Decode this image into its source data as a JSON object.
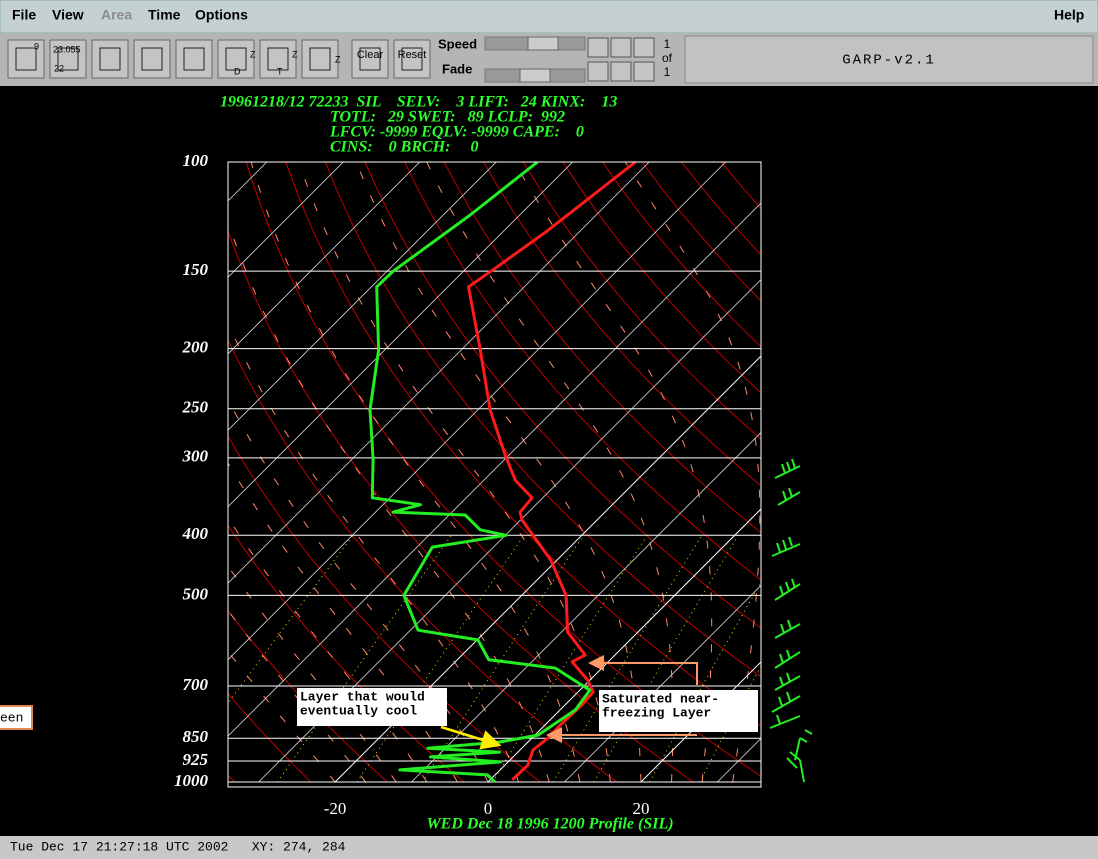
{
  "menu": {
    "items": [
      "File",
      "View",
      "Area",
      "Time",
      "Options"
    ],
    "help": "Help"
  },
  "toolbar": {
    "icon_texts": [
      "9",
      "23.055",
      "22",
      "Z",
      "D",
      "Z",
      "T",
      "Z"
    ],
    "clear": "Clear",
    "reset": "Reset",
    "speed": "Speed",
    "fade": "Fade",
    "frame_top": [
      "1",
      "of",
      "1"
    ],
    "app_title": "GARP-v2.1"
  },
  "side_tag": "een",
  "status": "Tue Dec 17 21:27:18 UTC 2002   XY: 274, 284",
  "chart_data": {
    "type": "skewt",
    "header": [
      "19961218/12 72233  SIL    SELV:    3 LIFT:   24 KINX:    13",
      "TOTL:   29 SWET:   89 LCLP:  992",
      "LFCV: -9999 EQLV: -9999 CAPE:    0",
      "CINS:    0 BRCH:     0"
    ],
    "title": "WED Dec 18 1996 1200 Profile (SIL)",
    "ylim": [
      1000,
      100
    ],
    "log_y": true,
    "yticks": [
      100,
      150,
      200,
      250,
      300,
      400,
      500,
      700,
      850,
      925,
      1000
    ],
    "xlim": [
      -34,
      35.7
    ],
    "xticks": [
      -20,
      0,
      20
    ],
    "series": [
      {
        "color": "#ff1a1a",
        "x": [
          2.9,
          3.0,
          1.7,
          2.1,
          2.0,
          2.2,
          2.0,
          -0.3,
          -4.7,
          -3.9,
          -9.2,
          -14.2,
          -20.9,
          -29.8,
          -31.1,
          -31.4,
          -35.9,
          -40.5,
          -48.4,
          -57.5,
          -67.3,
          -66.4,
          -64.3,
          -61.8
        ],
        "values": [
          992,
          939,
          888,
          849,
          809,
          751,
          716,
          685,
          640,
          624,
          573,
          500,
          438,
          378,
          367,
          348,
          326,
          297,
          251,
          201,
          159,
          150,
          129,
          100
        ]
      },
      {
        "color": "#22ee22",
        "x": [
          0.9,
          -1.0,
          -13.1,
          -1.0,
          -10.8,
          -2.4,
          -12.3,
          -3.7,
          0.4,
          2.0,
          1.3,
          -6.1,
          -15.9,
          -19.9,
          -29.0,
          -35.4,
          -38.0,
          -29.9,
          -34.0,
          -37.9,
          -47.7,
          -45.1,
          -52.3,
          -57.3,
          -64.1,
          -70.8,
          -79.3,
          -79.2,
          -76.5,
          -74.6
        ],
        "values": [
          1000,
          974,
          956,
          928,
          911,
          895,
          882,
          862,
          840,
          765,
          711,
          655,
          635,
          590,
          569,
          500,
          418,
          400,
          392,
          371,
          367,
          357,
          348,
          301,
          251,
          201,
          159,
          150,
          122,
          100
        ]
      }
    ],
    "annotations": [
      {
        "lines": [
          "Layer that would",
          "eventually cool"
        ]
      },
      {
        "lines": [
          "Saturated near-",
          "freezing Layer"
        ]
      }
    ]
  }
}
